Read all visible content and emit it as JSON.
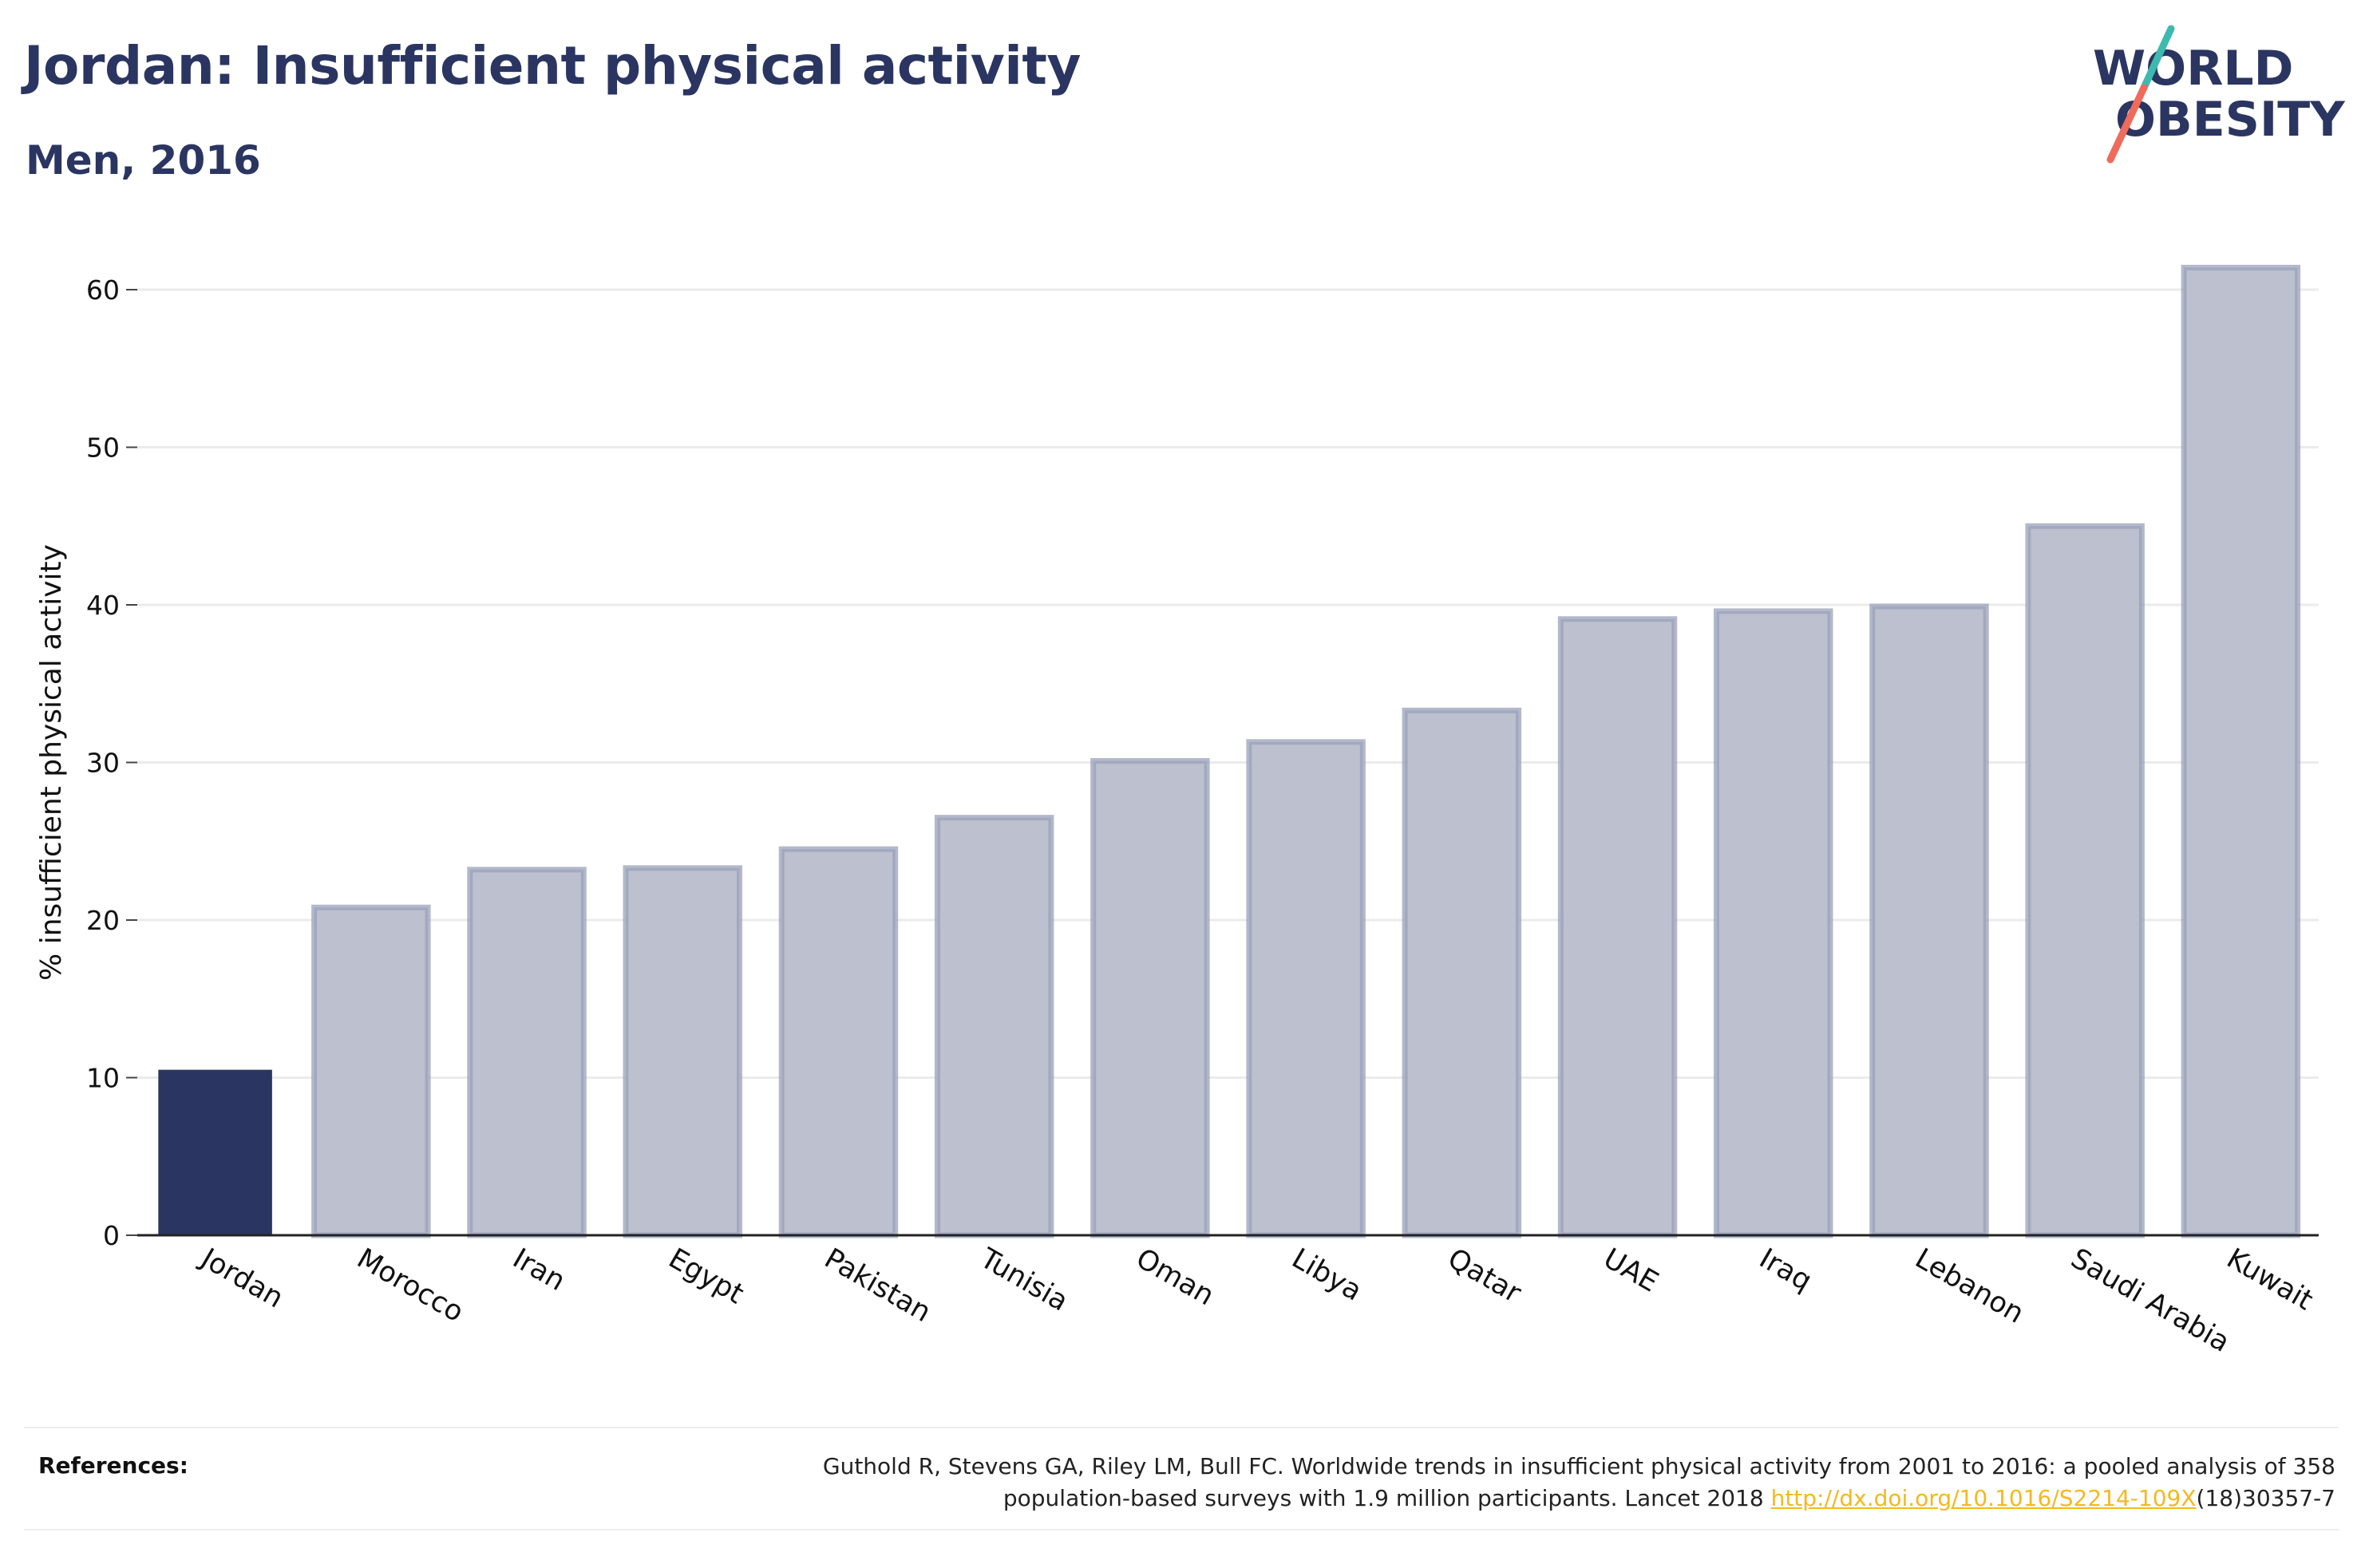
{
  "title": "Jordan: Insufficient physical activity",
  "subtitle": "Men, 2016",
  "logo": {
    "line1": "WORLD",
    "line2": "OBESITY",
    "accent_teal": "#3dbab0",
    "accent_coral": "#ef6b5b"
  },
  "colors": {
    "highlight": "#2b3561",
    "bar_fill": "#bcc0cf",
    "bar_stroke": "#9aa1b9",
    "grid": "#ebebeb",
    "text": "#2b3561"
  },
  "chart_data": {
    "type": "bar",
    "categories": [
      "Jordan",
      "Morocco",
      "Iran",
      "Egypt",
      "Pakistan",
      "Tunisia",
      "Oman",
      "Libya",
      "Qatar",
      "UAE",
      "Iraq",
      "Lebanon",
      "Saudi Arabia",
      "Kuwait"
    ],
    "values": [
      10.5,
      20.8,
      23.2,
      23.3,
      24.5,
      26.5,
      30.1,
      31.3,
      33.3,
      39.1,
      39.6,
      39.9,
      45.0,
      61.4
    ],
    "highlight": "Jordan",
    "ylabel": "% insufficient physical activity",
    "xlabel": "",
    "ylim": [
      0,
      65
    ],
    "yticks": [
      0,
      10,
      20,
      30,
      40,
      50,
      60
    ],
    "grid": true
  },
  "footer": {
    "references_label": "References:",
    "reference_line1": "Guthold R, Stevens GA, Riley LM, Bull FC. Worldwide trends in insufficient physical activity from 2001 to 2016: a pooled analysis of 358",
    "reference_line2_pre": "population-based surveys with 1.9 million participants. Lancet 2018 ",
    "reference_link": "http://dx.doi.org/10.1016/S2214-109X",
    "reference_line2_post": "(18)30357-7"
  }
}
